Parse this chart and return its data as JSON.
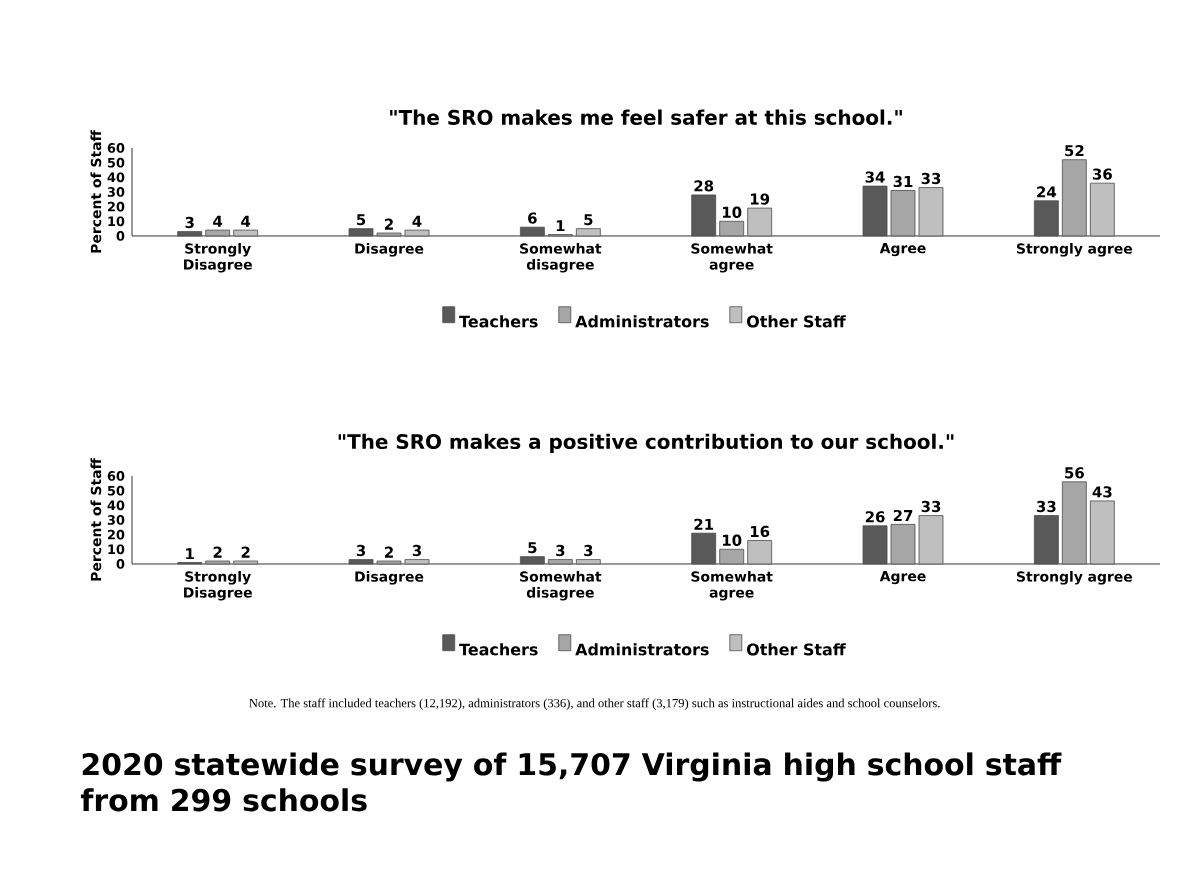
{
  "chart_data": [
    {
      "type": "bar",
      "title": "\"The SRO makes me feel safer at this school.\"",
      "ylabel": "Percent of Staff",
      "categories": [
        "Strongly Disagree",
        "Disagree",
        "Somewhat disagree",
        "Somewhat agree",
        "Agree",
        "Strongly agree"
      ],
      "series": [
        {
          "name": "Teachers",
          "color": "#595959",
          "values": [
            3,
            5,
            6,
            28,
            34,
            24
          ]
        },
        {
          "name": "Administrators",
          "color": "#a6a6a6",
          "values": [
            4,
            2,
            1,
            10,
            31,
            52
          ]
        },
        {
          "name": "Other Staff",
          "color": "#bfbfbf",
          "values": [
            4,
            4,
            5,
            19,
            33,
            36
          ]
        }
      ],
      "ylim": [
        0,
        60
      ],
      "yticks": [
        0,
        10,
        20,
        30,
        40,
        50,
        60
      ],
      "data_labels": true,
      "legend": "bottom"
    },
    {
      "type": "bar",
      "title": "\"The SRO makes a positive contribution to our school.\"",
      "ylabel": "Percent of Staff",
      "categories": [
        "Strongly Disagree",
        "Disagree",
        "Somewhat disagree",
        "Somewhat agree",
        "Agree",
        "Strongly agree"
      ],
      "series": [
        {
          "name": "Teachers",
          "color": "#595959",
          "values": [
            1,
            3,
            5,
            21,
            26,
            33
          ]
        },
        {
          "name": "Administrators",
          "color": "#a6a6a6",
          "values": [
            2,
            2,
            3,
            10,
            27,
            56
          ]
        },
        {
          "name": "Other Staff",
          "color": "#bfbfbf",
          "values": [
            2,
            3,
            3,
            16,
            33,
            43
          ]
        }
      ],
      "ylim": [
        0,
        60
      ],
      "yticks": [
        0,
        10,
        20,
        30,
        40,
        50,
        60
      ],
      "data_labels": true,
      "legend": "bottom",
      "annotations": [
        "Note. The staff included teachers (12,192), administrators (336), and other staff (3,179) such as instructional aides and school counselors.",
        "2020 statewide survey of 15,707 Virginia high school staff from 299 schools"
      ]
    }
  ]
}
